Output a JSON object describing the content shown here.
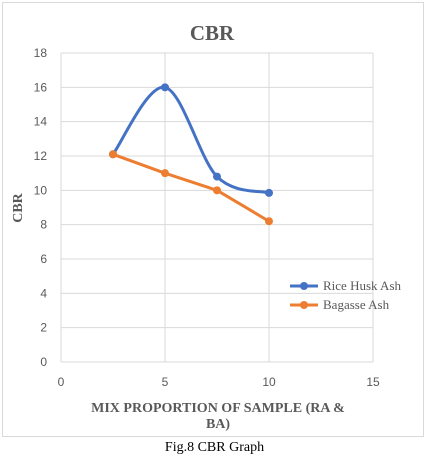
{
  "caption": "Fig.8 CBR Graph",
  "chart_data": {
    "type": "line",
    "title": "CBR",
    "xlabel_line1": "MIX PROPORTION OF SAMPLE (RA &",
    "xlabel_line2": "BA)",
    "ylabel": "CBR",
    "xlim": [
      0,
      15
    ],
    "ylim": [
      0,
      18
    ],
    "x_ticks": [
      0,
      5,
      10,
      15
    ],
    "y_ticks": [
      0,
      2,
      4,
      6,
      8,
      10,
      12,
      14,
      16,
      18
    ],
    "grid": true,
    "legend_position": "right",
    "series": [
      {
        "name": "Rice Husk Ash",
        "color": "#4472C4",
        "smooth": true,
        "x": [
          2.5,
          5,
          7.5,
          10
        ],
        "y": [
          12.1,
          16,
          10.8,
          9.85
        ]
      },
      {
        "name": "Bagasse Ash",
        "color": "#ED7D31",
        "smooth": false,
        "x": [
          2.5,
          5,
          7.5,
          10
        ],
        "y": [
          12.1,
          11,
          10,
          8.2
        ]
      }
    ]
  }
}
